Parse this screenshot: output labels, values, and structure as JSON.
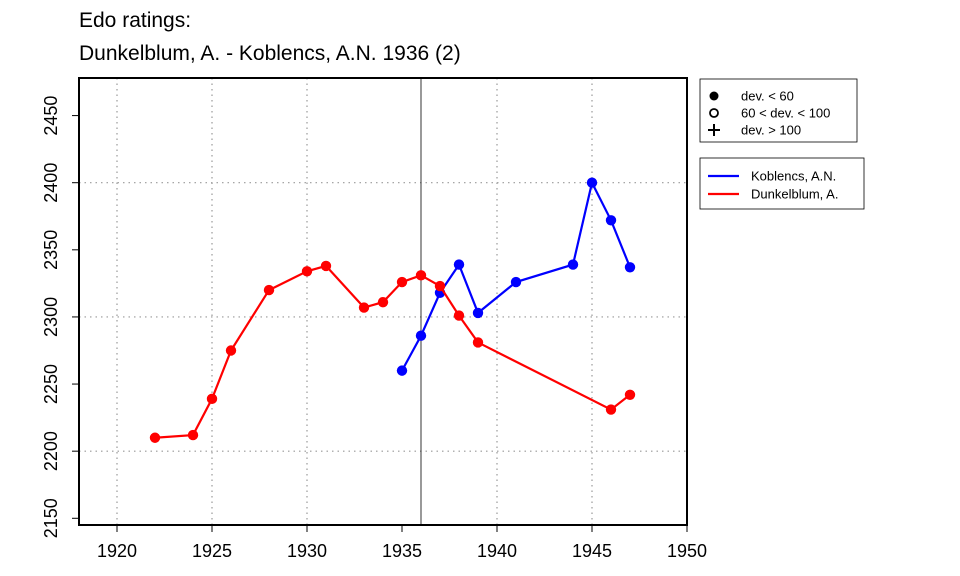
{
  "title_line1": "Edo ratings:",
  "title_line2": "Dunkelblum, A. - Koblencs, A.N. 1936 (2)",
  "chart_data": {
    "type": "line",
    "title": "Edo ratings: Dunkelblum, A. - Koblencs, A.N. 1936 (2)",
    "xlabel": "",
    "ylabel": "",
    "xlim": [
      1918,
      1950
    ],
    "ylim": [
      2145,
      2478
    ],
    "x_ticks": [
      1920,
      1925,
      1930,
      1935,
      1940,
      1945,
      1950
    ],
    "y_ticks": [
      2150,
      2200,
      2250,
      2300,
      2350,
      2400,
      2450
    ],
    "grid_x": [
      1920,
      1925,
      1930,
      1940,
      1945
    ],
    "grid_y": [
      2200,
      2300,
      2400
    ],
    "reference_line_x": 1936,
    "legend_markers": [
      {
        "symbol": "filled-circle",
        "label": "dev. < 60"
      },
      {
        "symbol": "open-circle",
        "label": "60 < dev. < 100"
      },
      {
        "symbol": "plus",
        "label": "dev. > 100"
      }
    ],
    "series": [
      {
        "name": "Koblencs, A.N.",
        "color": "#0000ff",
        "x": [
          1935,
          1936,
          1937,
          1938,
          1939,
          1941,
          1944,
          1945,
          1946,
          1947
        ],
        "y": [
          2260,
          2286,
          2318,
          2339,
          2303,
          2326,
          2339,
          2400,
          2372,
          2337
        ]
      },
      {
        "name": "Dunkelblum, A.",
        "color": "#ff0000",
        "x": [
          1922,
          1924,
          1925,
          1926,
          1928,
          1930,
          1931,
          1933,
          1934,
          1935,
          1936,
          1937,
          1938,
          1939,
          1946,
          1947
        ],
        "y": [
          2210,
          2212,
          2239,
          2275,
          2320,
          2334,
          2338,
          2307,
          2311,
          2326,
          2331,
          2323,
          2301,
          2281,
          2231,
          2242
        ]
      }
    ]
  }
}
